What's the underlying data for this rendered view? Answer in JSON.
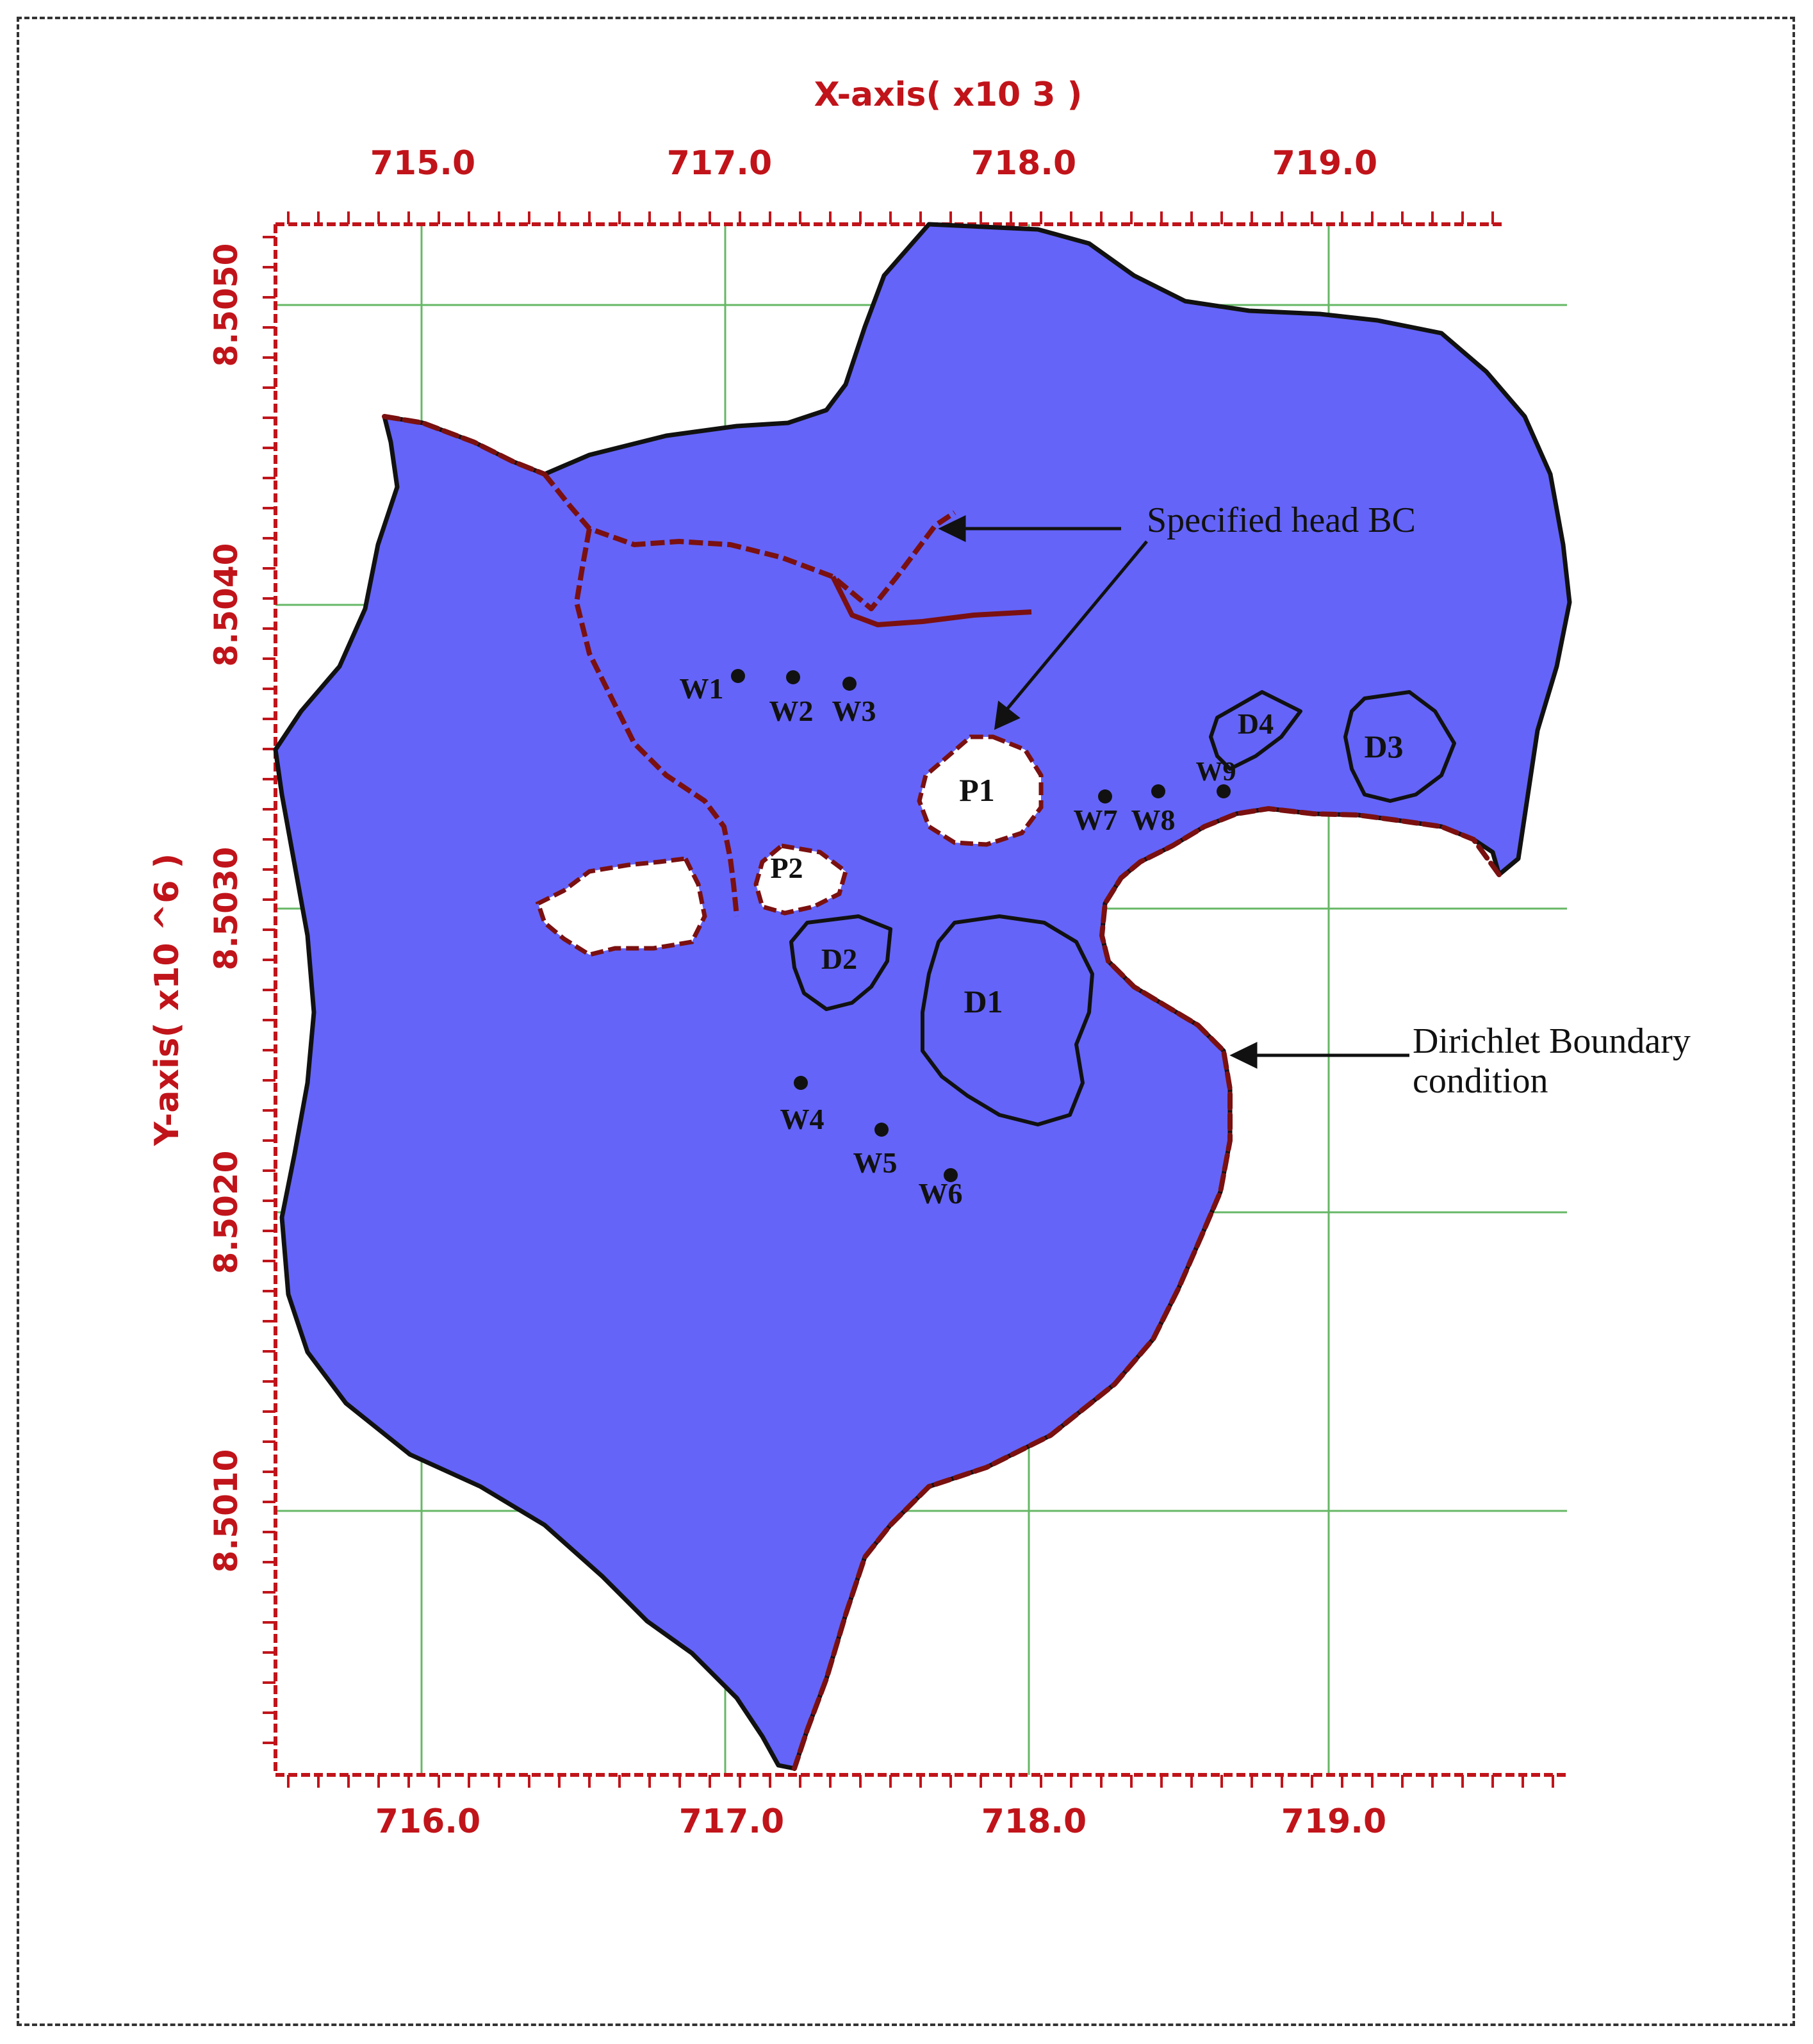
{
  "colors": {
    "domain_fill": "#6464f8",
    "axis_red": "#c0141a",
    "grid_green": "#33a033",
    "boundary_black": "#111111",
    "boundary_dirichlet": "#7a1010"
  },
  "axes": {
    "x_title": "X-axis( x10  3 )",
    "y_title": "Y-axis( x10 ^6 )",
    "x_ticks_top": [
      "715.0",
      "717.0",
      "718.0",
      "719.0"
    ],
    "x_ticks_bottom": [
      "716.0",
      "717.0",
      "718.0",
      "719.0"
    ],
    "y_ticks": [
      "8.5050",
      "8.5040",
      "8.5030",
      "8.5020",
      "8.5010"
    ]
  },
  "annotations": {
    "specified_head": "Specified head BC",
    "dirichlet_line1": "Dirichlet Boundary",
    "dirichlet_line2": "condition"
  },
  "wells": [
    "W1",
    "W2",
    "W3",
    "W4",
    "W5",
    "W6",
    "W7",
    "W8",
    "W9"
  ],
  "ponds": [
    "P1",
    "P2"
  ],
  "drains": [
    "D1",
    "D2",
    "D3",
    "D4"
  ]
}
